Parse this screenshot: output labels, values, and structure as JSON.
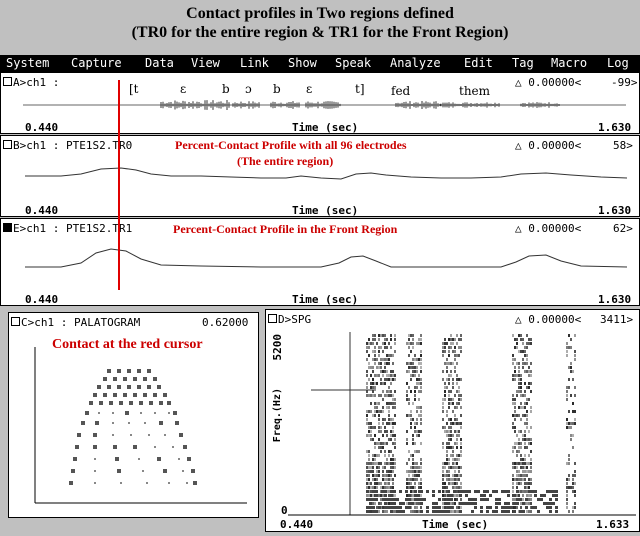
{
  "page": {
    "title_line1": "Contact profiles in Two regions defined",
    "title_line2": "(TR0 for the entire region & TR1 for the Front Region)"
  },
  "menu": [
    "System",
    "Capture",
    "Data",
    "View",
    "Link",
    "Show",
    "Speak",
    "Analyze",
    "Edit",
    "Tag",
    "Macro",
    "Log"
  ],
  "panelA": {
    "label": "A>ch1 :",
    "value": "0.00000<",
    "right_value": "-99>",
    "segments": [
      "[t",
      "ɛ",
      "b",
      "ɔ",
      "b",
      "ɛ",
      "t]"
    ],
    "words": [
      "fed",
      "them"
    ],
    "x_start": "0.440",
    "x_label": "Time (sec)",
    "x_end": "1.630"
  },
  "panelB": {
    "label": "B>ch1 : PTE1S2.TR0",
    "annotation_line1": "Percent-Contact Profile with all 96 electrodes",
    "annotation_line2": "(The entire region)",
    "value": "0.00000<",
    "right_value": "58>",
    "x_start": "0.440",
    "x_label": "Time (sec)",
    "x_end": "1.630"
  },
  "panelE": {
    "label": "E>ch1 : PTE1S2.TR1",
    "annotation": "Percent-Contact Profile in the Front Region",
    "value": "0.00000<",
    "right_value": "62>",
    "x_start": "0.440",
    "x_label": "Time (sec)",
    "x_end": "1.630"
  },
  "panelC": {
    "label": "C>ch1 : PALATOGRAM",
    "value": "0.62000",
    "annotation": "Contact at the red cursor"
  },
  "panelD": {
    "label": "D>SPG",
    "value": "0.00000<",
    "right_value": "3411>",
    "y_top": "5200",
    "y_label": "Freq.(Hz)",
    "y_bottom": "0",
    "x_start": "0.440",
    "x_label": "Time (sec)",
    "x_end": "1.633"
  },
  "colors": {
    "cursor": "#e00000",
    "annotation": "#cc0000",
    "background": "#c0c0c0",
    "panel": "#ffffff",
    "menubar": "#000000"
  }
}
